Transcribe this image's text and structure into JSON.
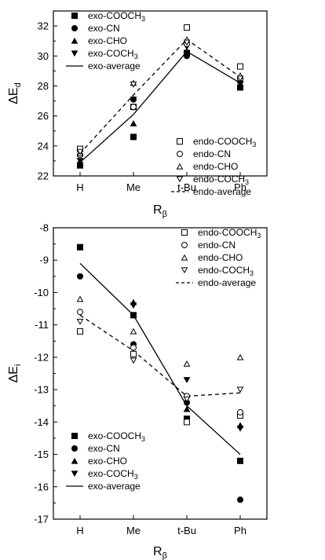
{
  "chart_data": [
    {
      "type": "scatter",
      "categories": [
        "H",
        "Me",
        "t-Bu",
        "Ph"
      ],
      "ylabel": {
        "base": "ΔE",
        "sub": "d"
      },
      "xlabel": {
        "base": "R",
        "sub": "β"
      },
      "ylim": [
        22,
        33
      ],
      "yticks": [
        22,
        24,
        26,
        28,
        30,
        32
      ],
      "legends": [
        {
          "placement": "top-left",
          "entries": [
            "exo-COOCH3",
            "exo-CN",
            "exo-CHO",
            "exo-COCH3",
            "exo-average"
          ]
        },
        {
          "placement": "bottom-right",
          "entries": [
            "endo-COOCH3",
            "endo-CN",
            "endo-CHO",
            "endo-COCH3",
            "endo-average"
          ]
        }
      ],
      "series": [
        {
          "name": "exo-COOCH3",
          "marker": "square-filled",
          "values": [
            22.7,
            24.6,
            30.2,
            27.9
          ]
        },
        {
          "name": "exo-CN",
          "marker": "circle-filled",
          "values": [
            22.8,
            27.1,
            30.0,
            28.3
          ]
        },
        {
          "name": "exo-CHO",
          "marker": "triangle-up-filled",
          "values": [
            22.9,
            25.5,
            30.3,
            28.4
          ]
        },
        {
          "name": "exo-COCH3",
          "marker": "triangle-down-filled",
          "values": [
            23.0,
            27.1,
            30.6,
            28.3
          ]
        },
        {
          "name": "exo-average",
          "marker": "line-solid",
          "values": [
            22.9,
            26.1,
            30.3,
            28.2
          ]
        },
        {
          "name": "endo-COOCH3",
          "marker": "square-open",
          "values": [
            23.8,
            26.6,
            31.9,
            29.3
          ]
        },
        {
          "name": "endo-CN",
          "marker": "circle-open",
          "values": [
            23.4,
            26.6,
            30.8,
            28.5
          ]
        },
        {
          "name": "endo-CHO",
          "marker": "triangle-up-open",
          "values": [
            23.5,
            28.2,
            31.1,
            28.7
          ]
        },
        {
          "name": "endo-COCH3",
          "marker": "triangle-down-open",
          "values": [
            23.6,
            28.1,
            30.9,
            28.5
          ]
        },
        {
          "name": "endo-average",
          "marker": "line-dashed",
          "values": [
            23.5,
            27.4,
            31.1,
            28.6
          ]
        }
      ]
    },
    {
      "type": "scatter",
      "categories": [
        "H",
        "Me",
        "t-Bu",
        "Ph"
      ],
      "ylabel": {
        "base": "ΔE",
        "sub": "i"
      },
      "xlabel": {
        "base": "R",
        "sub": "β"
      },
      "ylim": [
        -17,
        -8
      ],
      "yticks": [
        -8,
        -9,
        -10,
        -11,
        -12,
        -13,
        -14,
        -15,
        -16,
        -17
      ],
      "legends": [
        {
          "placement": "top-right",
          "entries": [
            "endo-COOCH3",
            "endo-CN",
            "endo-CHO",
            "endo-COCH3",
            "endo-average"
          ]
        },
        {
          "placement": "bottom-left",
          "entries": [
            "exo-COOCH3",
            "exo-CN",
            "exo-CHO",
            "exo-COCH3",
            "exo-average"
          ]
        }
      ],
      "series": [
        {
          "name": "exo-COOCH3",
          "marker": "square-filled",
          "values": [
            -8.6,
            -10.7,
            -13.9,
            -15.2
          ]
        },
        {
          "name": "exo-CN",
          "marker": "circle-filled",
          "values": [
            -9.5,
            -11.6,
            -13.4,
            -16.4
          ]
        },
        {
          "name": "exo-CHO",
          "marker": "triangle-up-filled",
          "values": [
            -8.6,
            -10.3,
            -13.6,
            -14.1
          ]
        },
        {
          "name": "exo-COCH3",
          "marker": "triangle-down-filled",
          "values": [
            -8.6,
            -10.4,
            -12.7,
            -14.2
          ]
        },
        {
          "name": "exo-average",
          "marker": "line-solid",
          "values": [
            -9.1,
            -10.7,
            -13.5,
            -15.0
          ]
        },
        {
          "name": "endo-COOCH3",
          "marker": "square-open",
          "values": [
            -11.2,
            -11.9,
            -14.0,
            -13.8
          ]
        },
        {
          "name": "endo-CN",
          "marker": "circle-open",
          "values": [
            -10.6,
            -11.7,
            -13.2,
            -13.7
          ]
        },
        {
          "name": "endo-CHO",
          "marker": "triangle-up-open",
          "values": [
            -10.2,
            -11.2,
            -12.2,
            -12.0
          ]
        },
        {
          "name": "endo-COCH3",
          "marker": "triangle-down-open",
          "values": [
            -10.9,
            -12.1,
            -13.3,
            -13.0
          ]
        },
        {
          "name": "endo-average",
          "marker": "line-dashed",
          "values": [
            -10.7,
            -11.8,
            -13.2,
            -13.1
          ]
        }
      ]
    }
  ]
}
